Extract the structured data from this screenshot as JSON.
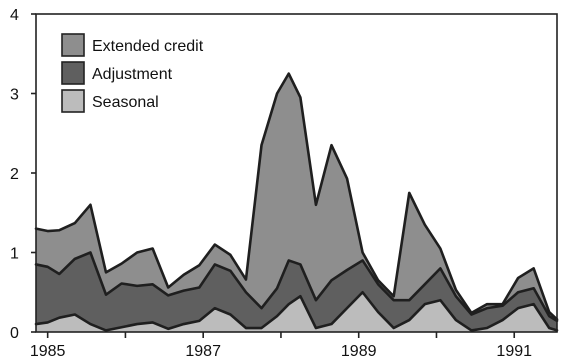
{
  "chart_data": {
    "type": "area",
    "x_label_years": [
      "1985",
      "1987",
      "1989",
      "1991"
    ],
    "y_ticks": [
      "0",
      "1",
      "2",
      "3",
      "4"
    ],
    "ylim": [
      0,
      4
    ],
    "xlim": [
      1984.85,
      1991.55
    ],
    "stacked": true,
    "legend": {
      "position": "top-left",
      "items": [
        "Extended credit",
        "Adjustment",
        "Seasonal"
      ]
    },
    "colors": {
      "extended_credit": "#8e8e8e",
      "adjustment": "#5f5f5f",
      "seasonal": "#bcbcbc",
      "line": "#1f1f1f",
      "background": "#ffffff"
    },
    "series": [
      {
        "name": "Extended credit",
        "x": [
          1984.85,
          1985.0,
          1985.15,
          1985.35,
          1985.55,
          1985.75,
          1985.95,
          1986.15,
          1986.35,
          1986.55,
          1986.75,
          1986.95,
          1987.15,
          1987.35,
          1987.55,
          1987.75,
          1987.95,
          1988.1,
          1988.25,
          1988.45,
          1988.65,
          1988.85,
          1989.05,
          1989.25,
          1989.45,
          1989.65,
          1989.85,
          1990.05,
          1990.25,
          1990.45,
          1990.65,
          1990.85,
          1991.05,
          1991.25,
          1991.45,
          1991.55
        ],
        "values": [
          0.45,
          0.45,
          0.55,
          0.45,
          0.6,
          0.28,
          0.25,
          0.42,
          0.45,
          0.1,
          0.2,
          0.28,
          0.25,
          0.2,
          0.16,
          2.05,
          2.45,
          2.35,
          2.1,
          1.2,
          1.7,
          1.15,
          0.1,
          0.05,
          0.05,
          1.35,
          0.75,
          0.25,
          0.08,
          0.02,
          0.05,
          0.02,
          0.18,
          0.25,
          0.05,
          0.02
        ]
      },
      {
        "name": "Adjustment",
        "x": [
          1984.85,
          1985.0,
          1985.15,
          1985.35,
          1985.55,
          1985.75,
          1985.95,
          1986.15,
          1986.35,
          1986.55,
          1986.75,
          1986.95,
          1987.15,
          1987.35,
          1987.55,
          1987.75,
          1987.95,
          1988.1,
          1988.25,
          1988.45,
          1988.65,
          1988.85,
          1989.05,
          1989.25,
          1989.45,
          1989.65,
          1989.85,
          1990.05,
          1990.25,
          1990.45,
          1990.65,
          1990.85,
          1991.05,
          1991.25,
          1991.45,
          1991.55
        ],
        "values": [
          0.75,
          0.7,
          0.55,
          0.7,
          0.9,
          0.45,
          0.55,
          0.48,
          0.48,
          0.42,
          0.42,
          0.42,
          0.55,
          0.55,
          0.45,
          0.25,
          0.35,
          0.55,
          0.4,
          0.35,
          0.55,
          0.48,
          0.4,
          0.35,
          0.35,
          0.25,
          0.25,
          0.4,
          0.3,
          0.2,
          0.25,
          0.18,
          0.2,
          0.2,
          0.15,
          0.12
        ]
      },
      {
        "name": "Seasonal",
        "x": [
          1984.85,
          1985.0,
          1985.15,
          1985.35,
          1985.55,
          1985.75,
          1985.95,
          1986.15,
          1986.35,
          1986.55,
          1986.75,
          1986.95,
          1987.15,
          1987.35,
          1987.55,
          1987.75,
          1987.95,
          1988.1,
          1988.25,
          1988.45,
          1988.65,
          1988.85,
          1989.05,
          1989.25,
          1989.45,
          1989.65,
          1989.85,
          1990.05,
          1990.25,
          1990.45,
          1990.65,
          1990.85,
          1991.05,
          1991.25,
          1991.45,
          1991.55
        ],
        "values": [
          0.1,
          0.12,
          0.18,
          0.22,
          0.1,
          0.02,
          0.06,
          0.1,
          0.12,
          0.04,
          0.1,
          0.14,
          0.3,
          0.22,
          0.05,
          0.05,
          0.2,
          0.35,
          0.45,
          0.05,
          0.1,
          0.3,
          0.5,
          0.25,
          0.05,
          0.15,
          0.35,
          0.4,
          0.15,
          0.02,
          0.05,
          0.15,
          0.3,
          0.35,
          0.05,
          0.02
        ]
      }
    ]
  }
}
